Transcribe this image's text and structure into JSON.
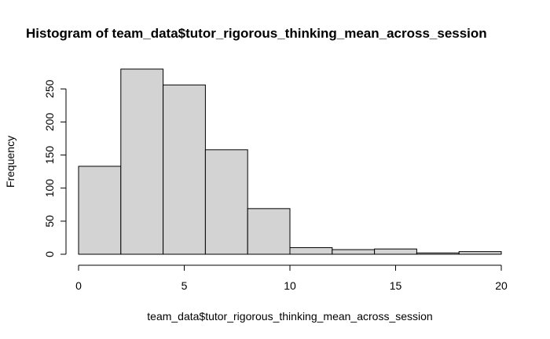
{
  "chart_data": {
    "type": "bar",
    "title": "Histogram of team_data$tutor_rigorous_thinking_mean_across_session",
    "xlabel": "team_data$tutor_rigorous_thinking_mean_across_session",
    "ylabel": "Frequency",
    "bins": [
      {
        "start": 0,
        "end": 2,
        "count": 133
      },
      {
        "start": 2,
        "end": 4,
        "count": 280
      },
      {
        "start": 4,
        "end": 6,
        "count": 256
      },
      {
        "start": 6,
        "end": 8,
        "count": 158
      },
      {
        "start": 8,
        "end": 10,
        "count": 69
      },
      {
        "start": 10,
        "end": 12,
        "count": 10
      },
      {
        "start": 12,
        "end": 14,
        "count": 7
      },
      {
        "start": 14,
        "end": 16,
        "count": 8
      },
      {
        "start": 16,
        "end": 18,
        "count": 2
      },
      {
        "start": 18,
        "end": 20,
        "count": 4
      }
    ],
    "x_ticks": [
      0,
      5,
      10,
      15,
      20
    ],
    "y_ticks": [
      0,
      50,
      100,
      150,
      200,
      250
    ],
    "xlim": [
      0,
      20
    ],
    "ylim": [
      0,
      280
    ],
    "grid": false,
    "legend": "none",
    "bar_fill": "#d3d3d3",
    "bar_stroke": "#000000"
  }
}
